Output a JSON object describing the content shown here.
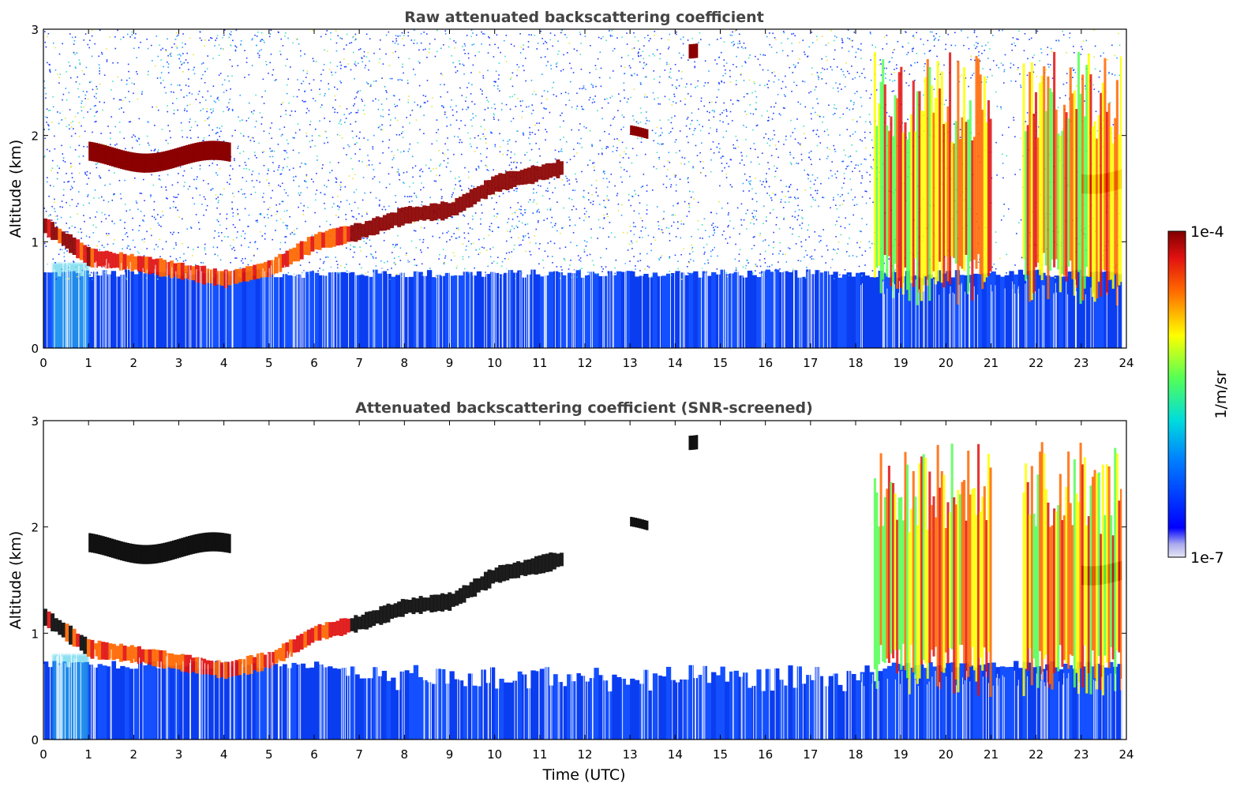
{
  "chart_data": [
    {
      "type": "heatmap",
      "title": "Raw attenuated backscattering coefficient",
      "xlabel": "",
      "ylabel": "Altitude (km)",
      "xlim": [
        0,
        24
      ],
      "ylim": [
        0,
        3
      ],
      "x_ticks": [
        "0",
        "1",
        "2",
        "3",
        "4",
        "5",
        "6",
        "7",
        "8",
        "9",
        "10",
        "11",
        "12",
        "13",
        "14",
        "15",
        "16",
        "17",
        "18",
        "19",
        "20",
        "21",
        "22",
        "23",
        "24"
      ],
      "y_ticks": [
        "0",
        "1",
        "2",
        "3"
      ],
      "screened": false
    },
    {
      "type": "heatmap",
      "title": "Attenuated backscattering coefficient (SNR-screened)",
      "xlabel": "Time (UTC)",
      "ylabel": "Altitude (km)",
      "xlim": [
        0,
        24
      ],
      "ylim": [
        0,
        3
      ],
      "x_ticks": [
        "0",
        "1",
        "2",
        "3",
        "4",
        "5",
        "6",
        "7",
        "8",
        "9",
        "10",
        "11",
        "12",
        "13",
        "14",
        "15",
        "16",
        "17",
        "18",
        "19",
        "20",
        "21",
        "22",
        "23",
        "24"
      ],
      "y_ticks": [
        "0",
        "1",
        "2",
        "3"
      ],
      "screened": true
    }
  ],
  "colorbar": {
    "label": "1/m/sr",
    "max_label": "1e-4",
    "min_label": "1e-7",
    "scale": "log",
    "colormap": "jet"
  },
  "features": {
    "boundary_layer_top_km": 0.7,
    "aerosol_layer": [
      [
        0.0,
        1.15
      ],
      [
        0.5,
        1.0
      ],
      [
        1.0,
        0.85
      ],
      [
        2.0,
        0.8
      ],
      [
        4.0,
        0.65
      ],
      [
        5.0,
        0.75
      ],
      [
        6.0,
        1.0
      ],
      [
        7.0,
        1.1
      ],
      [
        8.0,
        1.25
      ],
      [
        9.0,
        1.3
      ],
      [
        10.0,
        1.55
      ],
      [
        11.0,
        1.65
      ],
      [
        11.5,
        1.7
      ]
    ],
    "cloud_patches": [
      {
        "x": [
          1.0,
          4.1
        ],
        "alt": [
          1.6,
          2.0
        ]
      },
      {
        "x": [
          13.0,
          13.4
        ],
        "alt": [
          1.9,
          2.1
        ]
      },
      {
        "x": [
          14.3,
          14.5
        ],
        "alt": [
          2.7,
          3.0
        ]
      },
      {
        "x": [
          23.0,
          23.9
        ],
        "alt": [
          1.4,
          1.8
        ]
      }
    ],
    "precip_streaks": [
      [
        18.4,
        21.0
      ],
      [
        21.7,
        23.9
      ]
    ]
  }
}
